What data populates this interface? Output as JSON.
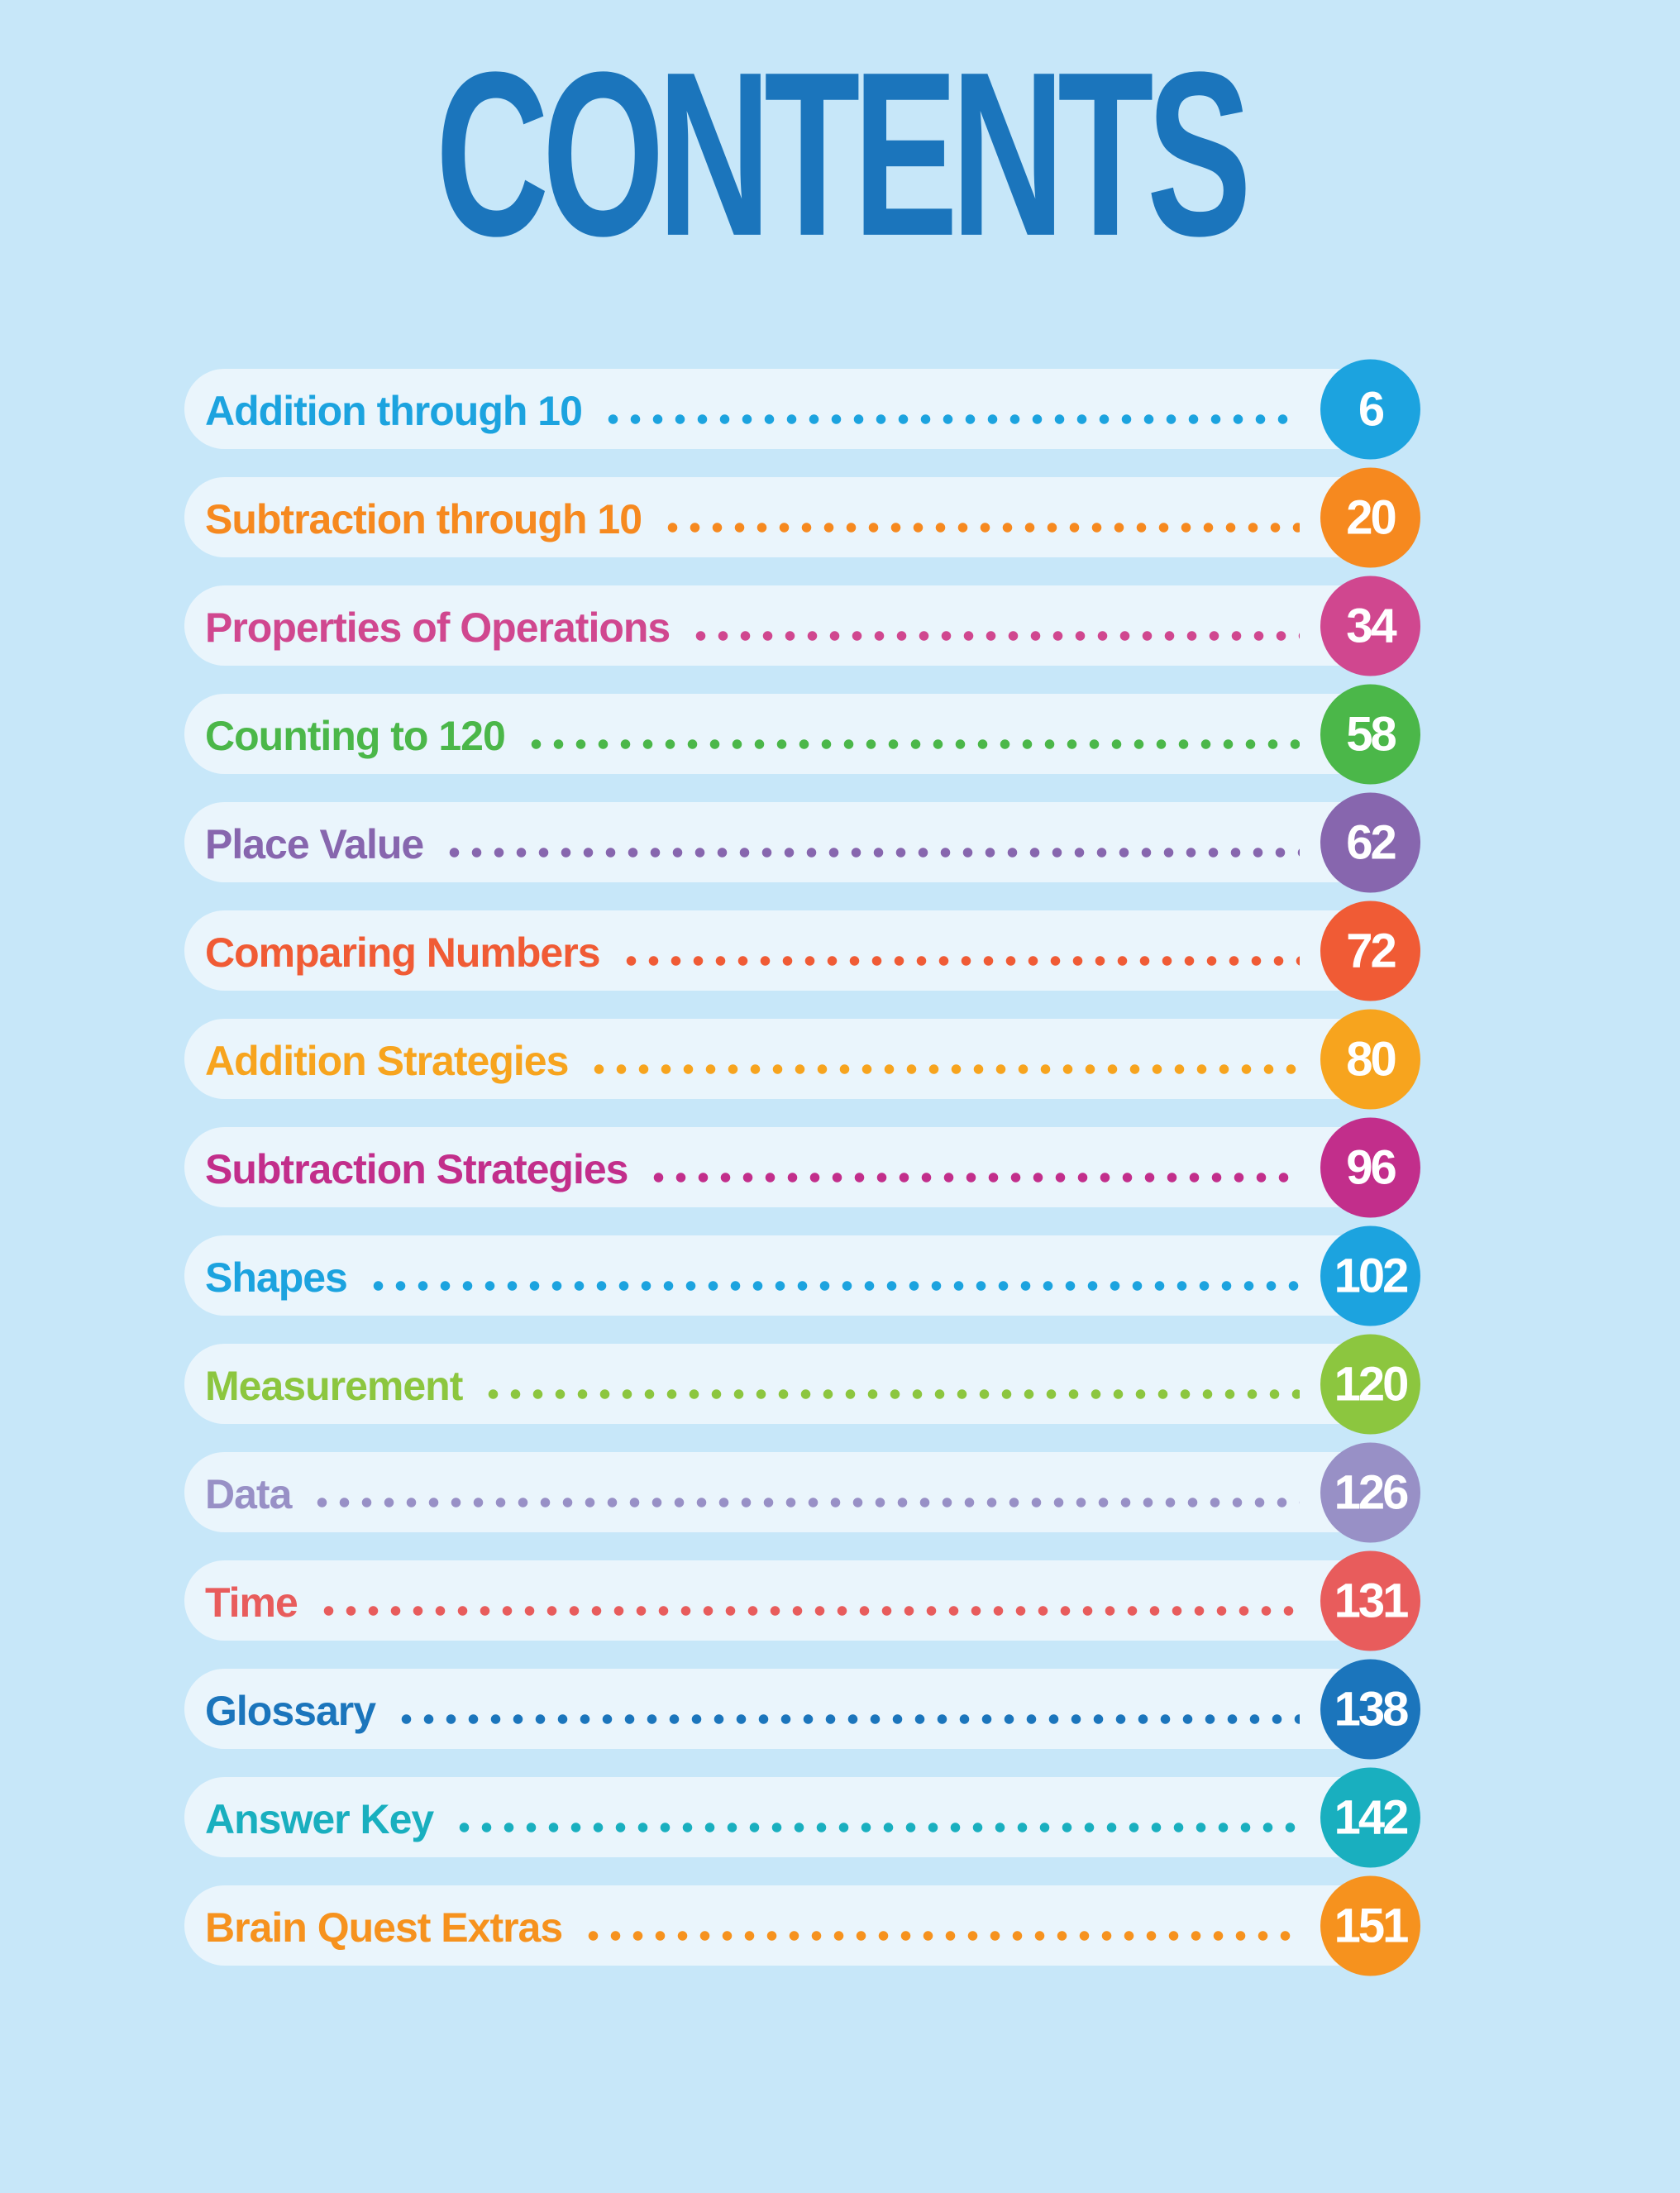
{
  "page": {
    "title": "CONTENTS",
    "background_color": "#C7E7F9",
    "row_band_color": "#EAF5FC",
    "title_color": "#1B75BC"
  },
  "toc": {
    "entries": [
      {
        "label": "Addition through 10",
        "page": "6",
        "color": "#1CA3DF"
      },
      {
        "label": "Subtraction through 10",
        "page": "20",
        "color": "#F6891F"
      },
      {
        "label": "Properties of Operations",
        "page": "34",
        "color": "#D0478F"
      },
      {
        "label": "Counting to 120",
        "page": "58",
        "color": "#4BB749"
      },
      {
        "label": "Place Value",
        "page": "62",
        "color": "#8766AE"
      },
      {
        "label": "Comparing Numbers",
        "page": "72",
        "color": "#F05B35"
      },
      {
        "label": "Addition Strategies",
        "page": "80",
        "color": "#F7A41E"
      },
      {
        "label": "Subtraction Strategies",
        "page": "96",
        "color": "#C22E8B"
      },
      {
        "label": "Shapes",
        "page": "102",
        "color": "#1CA3DF"
      },
      {
        "label": "Measurement",
        "page": "120",
        "color": "#8CC63F"
      },
      {
        "label": "Data",
        "page": "126",
        "color": "#9890C6"
      },
      {
        "label": "Time",
        "page": "131",
        "color": "#E85C5C"
      },
      {
        "label": "Glossary",
        "page": "138",
        "color": "#1B75BC"
      },
      {
        "label": "Answer Key",
        "page": "142",
        "color": "#19AFBF"
      },
      {
        "label": "Brain Quest Extras",
        "page": "151",
        "color": "#F6921E"
      }
    ]
  }
}
